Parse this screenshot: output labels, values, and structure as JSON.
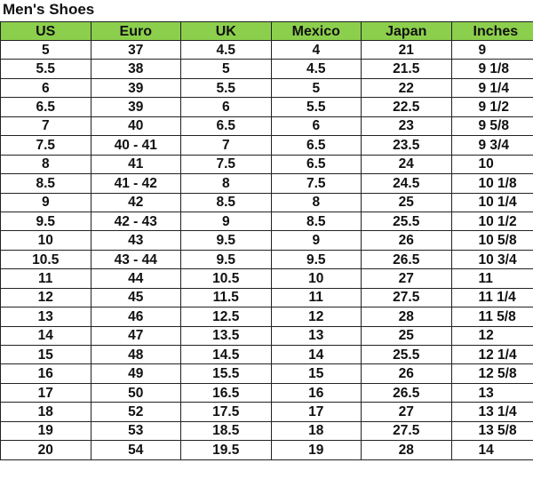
{
  "title": "Men's Shoes",
  "colors": {
    "header_bg": "#8ccf4d",
    "border": "#222222"
  },
  "table": {
    "headers": [
      "US",
      "Euro",
      "UK",
      "Mexico",
      "Japan",
      "Inches"
    ],
    "rows": [
      [
        "5",
        "37",
        "4.5",
        "4",
        "21",
        "9"
      ],
      [
        "5.5",
        "38",
        "5",
        "4.5",
        "21.5",
        "9 1/8"
      ],
      [
        "6",
        "39",
        "5.5",
        "5",
        "22",
        "9 1/4"
      ],
      [
        "6.5",
        "39",
        "6",
        "5.5",
        "22.5",
        "9 1/2"
      ],
      [
        "7",
        "40",
        "6.5",
        "6",
        "23",
        "9 5/8"
      ],
      [
        "7.5",
        "40 - 41",
        "7",
        "6.5",
        "23.5",
        "9 3/4"
      ],
      [
        "8",
        "41",
        "7.5",
        "6.5",
        "24",
        "10"
      ],
      [
        "8.5",
        "41 - 42",
        "8",
        "7.5",
        "24.5",
        "10 1/8"
      ],
      [
        "9",
        "42",
        "8.5",
        "8",
        "25",
        "10 1/4"
      ],
      [
        "9.5",
        "42 - 43",
        "9",
        "8.5",
        "25.5",
        "10 1/2"
      ],
      [
        "10",
        "43",
        "9.5",
        "9",
        "26",
        "10 5/8"
      ],
      [
        "10.5",
        "43 - 44",
        "9.5",
        "9.5",
        "26.5",
        "10 3/4"
      ],
      [
        "11",
        "44",
        "10.5",
        "10",
        "27",
        "11"
      ],
      [
        "12",
        "45",
        "11.5",
        "11",
        "27.5",
        "11 1/4"
      ],
      [
        "13",
        "46",
        "12.5",
        "12",
        "28",
        "11 5/8"
      ],
      [
        "14",
        "47",
        "13.5",
        "13",
        "25",
        "12"
      ],
      [
        "15",
        "48",
        "14.5",
        "14",
        "25.5",
        "12 1/4"
      ],
      [
        "16",
        "49",
        "15.5",
        "15",
        "26",
        "12 5/8"
      ],
      [
        "17",
        "50",
        "16.5",
        "16",
        "26.5",
        "13"
      ],
      [
        "18",
        "52",
        "17.5",
        "17",
        "27",
        "13 1/4"
      ],
      [
        "19",
        "53",
        "18.5",
        "18",
        "27.5",
        "13 5/8"
      ],
      [
        "20",
        "54",
        "19.5",
        "19",
        "28",
        "14"
      ]
    ]
  }
}
